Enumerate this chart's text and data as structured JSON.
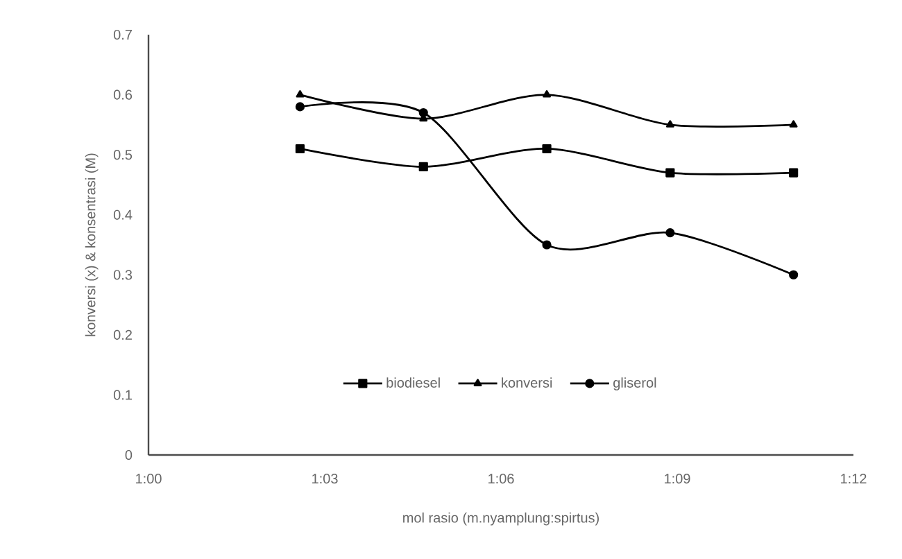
{
  "chart_data": {
    "type": "line",
    "xlabel": "mol rasio (m.nyamplung:spirtus)",
    "ylabel": "konversi (x) & konsentrasi (M)",
    "xlim": [
      1.0,
      1.2
    ],
    "xticks": [
      {
        "value": 1.0,
        "label": "1:00"
      },
      {
        "value": 1.05,
        "label": "1:03"
      },
      {
        "value": 1.1,
        "label": "1:06"
      },
      {
        "value": 1.15,
        "label": "1:09"
      },
      {
        "value": 1.2,
        "label": "1:12"
      }
    ],
    "ylim": [
      0,
      0.7
    ],
    "yticks": [
      0,
      0.1,
      0.2,
      0.3,
      0.4,
      0.5,
      0.6,
      0.7
    ],
    "x": [
      1.043,
      1.078,
      1.113,
      1.148,
      1.183
    ],
    "series": [
      {
        "name": "biodiesel",
        "color": "#000000",
        "marker": "square",
        "values": [
          0.51,
          0.48,
          0.51,
          0.47,
          0.47
        ]
      },
      {
        "name": "konversi",
        "color": "#000000",
        "marker": "triangle",
        "values": [
          0.6,
          0.56,
          0.6,
          0.55,
          0.55
        ]
      },
      {
        "name": "gliserol",
        "color": "#000000",
        "marker": "circle",
        "values": [
          0.58,
          0.57,
          0.35,
          0.37,
          0.3
        ]
      }
    ],
    "grid": false,
    "legend": "bottom",
    "line_style": "solid"
  }
}
